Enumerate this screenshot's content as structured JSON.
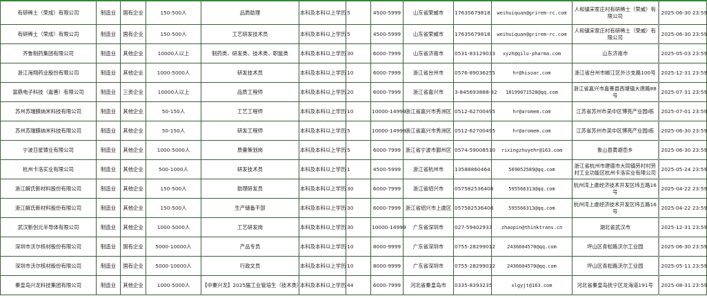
{
  "rows": [
    [
      "有研稀土（荣成）有限公司",
      "制造业",
      "国有企业",
      "150-500人",
      "品质助理",
      "本科及本科以上学历",
      "5",
      "4500-5999",
      "山东省荣威市",
      "17635679818",
      "weihuiquan@grirem-rc.com",
      "人和镇宋家庄村有研稀土（荣威）有限公司",
      "2025-06-30 23:59"
    ],
    [
      "有研稀土（荣成）有限公司",
      "制造业",
      "国有企业",
      "150-500人",
      "工艺研发技术员",
      "本科及本科以上学历",
      "5",
      "4500-5999",
      "山东省荣威市",
      "17635679818",
      "weihuiquan@grirem-rc.com",
      "人和镇宋家庄村有研稀土（荣威）有限公司",
      "2025-06-30 23:59"
    ],
    [
      "齐鲁制药集团有限公司",
      "制造业",
      "其他企业",
      "10000人以上",
      "制药类、研发类、技术类、职能类",
      "本科及本科以上学历",
      "30",
      "6000-7999",
      "山东省济南市",
      "0531-83129033",
      "xyzh@qilu-pharma.com",
      "山东济南市",
      "2025-05-03 23:59"
    ],
    [
      "浙江海翔药业股份有限公司",
      "制造业",
      "其他企业",
      "1000-5000人",
      "研发技术员",
      "本科及本科以上学历",
      "10",
      "6000-7999",
      "浙江省台州市",
      "0576-89036255",
      "hr@hisoar.com",
      "浙江省台州市椒江区外沙支路100号",
      "2025-12-31 23:59"
    ],
    [
      "富鼎电子科技（嘉善）有限公司",
      "制造业",
      "三资企业",
      "10000人以上",
      "品质工程师",
      "本科及本科以上学历",
      "20",
      "6000-7999",
      "浙江省嘉兴市",
      "3-845693888-32",
      "18199071528@qq.com",
      "浙江省嘉兴市嘉善县西塘镇大唐路88号",
      "2025-07-31 23:59"
    ],
    [
      "苏州苏瑞膜纳米科技有限公司",
      "制造业",
      "其他企业",
      "50-150人",
      "工艺工程师",
      "本科及本科以上学历",
      "10",
      "10000-14999",
      "浙江省嘉兴市秀洲区",
      "0512-62700495",
      "hr@aromem.com",
      "江苏省苏州市吴中区博亮产业园I栋",
      "2025-07-01 23:59"
    ],
    [
      "苏州苏瑞膜纳米科技有限公司",
      "制造业",
      "其他企业",
      "50-150人",
      "研发工程师",
      "本科及本科以上学历",
      "5",
      "10000-14999",
      "浙江省嘉兴市秀洲区",
      "0512-62700495",
      "hr@aromem.com",
      "江苏省苏州市吴中区博亮产业园I栋",
      "2025-06-30 23:59"
    ],
    [
      "宁波日星铸业有限公司",
      "制造业",
      "其他企业",
      "1000-5000人",
      "质量策划岗",
      "本科及本科以上学历",
      "5",
      "6000-7999",
      "浙江省宁波市鄞州区",
      "0574-59008510",
      "rixingzhuyehr@163.com",
      "象山县黄避岙乡",
      "2025-06-30 23:59"
    ],
    [
      "杭州卡洛实业有限公司",
      "制造业",
      "其他企业",
      "500-1000人",
      "研发技术员",
      "本科及本科以上学历",
      "1",
      "4500-5999",
      "浙江省杭州市",
      "13588860464",
      "569052589@qq.com",
      "浙江省杭州市建德市大同镇劳村村劳村工业功能区杭州卡洛实业有限公司",
      "2025-05-24 23:59"
    ],
    [
      "浙江解氏新材料股份有限公司",
      "制造业",
      "其他企业",
      "150-500人",
      "助理研发员",
      "本科及本科以上学历",
      "30",
      "6000-7999",
      "浙江省绍兴市",
      "057582536408",
      "595566313@qq.com",
      "杭州湾上虞经济技术开发区纬五路16号",
      "2025-04-22 23:59"
    ],
    [
      "浙江解氏新材料股份有限公司",
      "制造业",
      "其他企业",
      "150-500人",
      "生产储备干部",
      "本科及本科以上学历",
      "30",
      "6000-7999",
      "浙江省绍兴市上虞区",
      "057582536408",
      "595566313@qq.com",
      "杭州湾上虞经济技术开发区纬五路16号",
      "2025-04-22 23:59"
    ],
    [
      "武汉新创元半导体有限公司",
      "制造业",
      "其他企业",
      "1000-5000人",
      "工艺研发岗",
      "本科及本科以上学历",
      "30",
      "10000-14999",
      "广东省深圳市",
      "027-59402933",
      "zhaopin@thinktrans.cn",
      "湖北省武汉市",
      "2025-12-31 23:59"
    ],
    [
      "深圳市沃尔核材股份有限公司",
      "制造业",
      "国有企业",
      "5000-10000人",
      "产品专员",
      "本科及本科以上学历",
      "10",
      "8000-9999",
      "广东省深圳市",
      "0755-28299012",
      "2436604570@qq.com",
      "坪山区青松路沃尔工业园",
      "2025-06-30 23:59"
    ],
    [
      "深圳市沃尔核材股份有限公司",
      "制造业",
      "国有企业",
      "5000-10000人",
      "行政文员",
      "本科及本科以上学历",
      "10",
      "8000-9999",
      "广东省深圳市",
      "0755-28299012",
      "2436604570@qq.com",
      "坪山区青松路沃尔工业园",
      "2025-05-11 23:59"
    ],
    [
      "秦皇岛兴龙科技集团有限公司",
      "制造业",
      "其他企业",
      "1000-5000人",
      "【中秦兴龙】2025届工业管培生（技术类）",
      "本科及本科以上学历",
      "44",
      "6000-7999",
      "河北省秦皇岛市",
      "0335-8393235",
      "xlgyjt@163.com",
      "河北省秦皇岛抚宁区龙海道191号",
      "2025-08-31 23:59"
    ]
  ]
}
